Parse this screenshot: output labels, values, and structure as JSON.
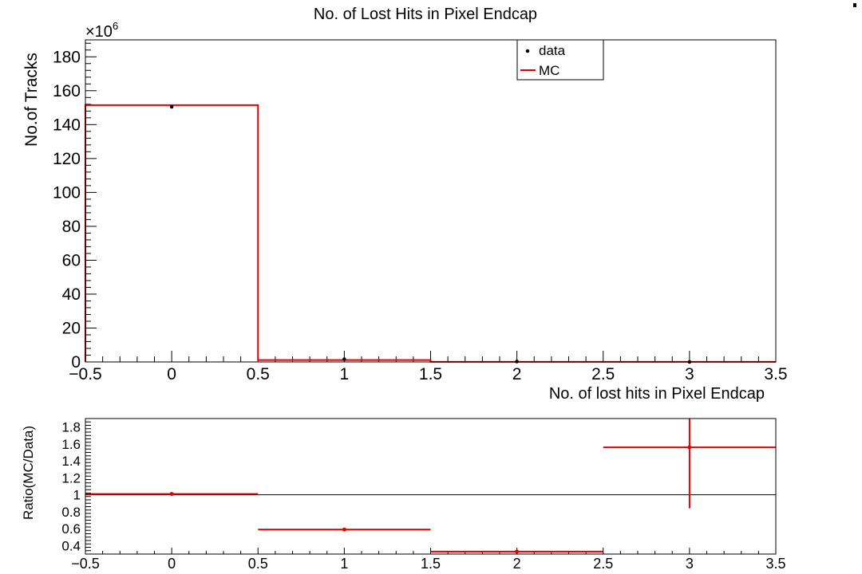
{
  "chart_data": [
    {
      "type": "histogram",
      "title": "No. of Lost Hits in Pixel Endcap",
      "xlabel": "No. of lost hits in Pixel Endcap",
      "ylabel": "No.of Tracks",
      "y_multiplier": "×10",
      "y_multiplier_exp": "6",
      "xlim": [
        -0.5,
        3.5
      ],
      "ylim": [
        0,
        190
      ],
      "x_tick_labels": [
        "−0.5",
        "0",
        "0.5",
        "1",
        "1.5",
        "2",
        "2.5",
        "3",
        "3.5"
      ],
      "y_tick_labels": [
        "0",
        "20",
        "40",
        "60",
        "80",
        "100",
        "120",
        "140",
        "160",
        "180"
      ],
      "legend_position": "top-right",
      "legend": [
        {
          "label": "data",
          "marker": "point",
          "color": "#000000"
        },
        {
          "label": "MC",
          "marker": "line",
          "color": "#e00000"
        }
      ],
      "bin_edges": [
        -0.5,
        0.5,
        1.5,
        2.5,
        3.5
      ],
      "series": [
        {
          "name": "data",
          "style": "points",
          "color": "#000000",
          "x": [
            0,
            1,
            2,
            3
          ],
          "y": [
            150.5,
            1.6,
            0.25,
            0.02
          ]
        },
        {
          "name": "MC",
          "style": "step",
          "color": "#e00000",
          "values": [
            151.5,
            1.1,
            0.08,
            0.03
          ]
        }
      ]
    },
    {
      "type": "scatter",
      "ylabel": "Ratio(MC/Data)",
      "xlim": [
        -0.5,
        3.5
      ],
      "ylim": [
        0.3,
        1.9
      ],
      "x_tick_labels": [
        "−0.5",
        "0",
        "0.5",
        "1",
        "1.5",
        "2",
        "2.5",
        "3",
        "3.5"
      ],
      "y_tick_labels": [
        "0.4",
        "0.6",
        "0.8",
        "1",
        "1.2",
        "1.4",
        "1.6",
        "1.8"
      ],
      "reference_line": 1,
      "series": [
        {
          "name": "ratio",
          "color": "#e00000",
          "x": [
            0,
            1,
            2,
            3
          ],
          "x_err": [
            0.5,
            0.5,
            0.5,
            0.5
          ],
          "y": [
            1.01,
            0.59,
            0.33,
            1.56
          ],
          "y_err_low": [
            0.0,
            0.0,
            0.0,
            0.72
          ],
          "y_err_high": [
            0.0,
            0.0,
            0.0,
            0.6
          ]
        }
      ]
    }
  ]
}
